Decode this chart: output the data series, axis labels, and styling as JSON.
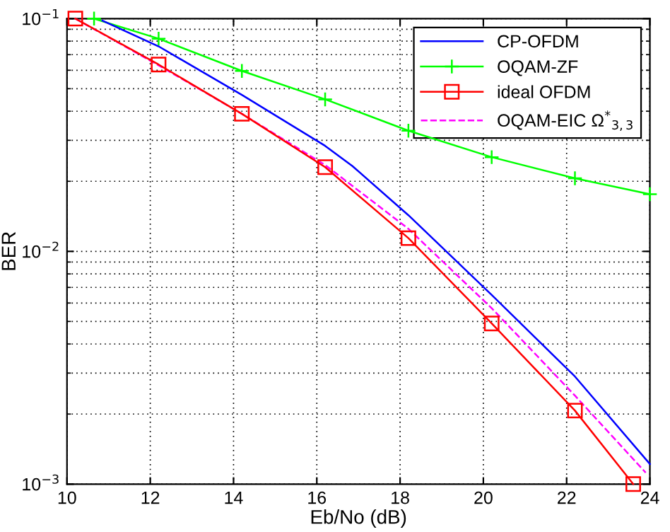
{
  "chart_data": {
    "type": "line",
    "xlabel": "Eb/No (dB)",
    "ylabel": "BER",
    "log": "y",
    "grid": true,
    "legend": "top right",
    "xlim": [
      10,
      24
    ],
    "xticks": [
      10,
      12,
      14,
      16,
      18,
      20,
      22,
      24
    ],
    "ylim": [
      0.001,
      0.1
    ],
    "yticks": [
      {
        "value": 0.001,
        "label": "10$^{−3}$"
      },
      {
        "value": 0.01,
        "label": "10$^{−2}$"
      },
      {
        "value": 0.1,
        "label": "10$^{−1}$"
      }
    ],
    "series": [
      {
        "name": "CP-OFDM",
        "color": "#0000ff",
        "marker": "none",
        "line_style": "solid",
        "x": [
          10.85,
          12.2,
          14.2,
          16.2,
          16.85,
          18.2,
          20.2,
          22.2,
          24
        ],
        "values": [
          0.098,
          0.076,
          0.047,
          0.0284,
          0.0233,
          0.0143,
          0.0065,
          0.0029,
          0.00122
        ]
      },
      {
        "name": "OQAM-ZF",
        "color": "#00ff00",
        "marker": "cross",
        "line_style": "solid",
        "x": [
          10.65,
          12.2,
          14.2,
          16.2,
          18.2,
          20.2,
          22.2,
          24
        ],
        "values": [
          0.1,
          0.082,
          0.0596,
          0.045,
          0.033,
          0.0254,
          0.0206,
          0.0176
        ]
      },
      {
        "name": "ideal OFDM",
        "color": "#ff0000",
        "marker": "square",
        "line_style": "solid",
        "x": [
          10.2,
          12.2,
          14.2,
          16.2,
          18.2,
          20.2,
          22.2,
          23.6
        ],
        "values": [
          0.1,
          0.0635,
          0.039,
          0.023,
          0.0114,
          0.0049,
          0.00207,
          0.001
        ]
      },
      {
        "name": "OQAM-EIC Ω$^{*}$$_{3,3}$",
        "color": "#ff00ff",
        "marker": "none",
        "line_style": "dashed",
        "x": [
          10.2,
          12.2,
          14.2,
          16.2,
          18.2,
          20.2,
          22.2,
          23.9
        ],
        "values": [
          0.1,
          0.063,
          0.039,
          0.0235,
          0.0125,
          0.0057,
          0.0024,
          0.00112
        ]
      }
    ]
  }
}
